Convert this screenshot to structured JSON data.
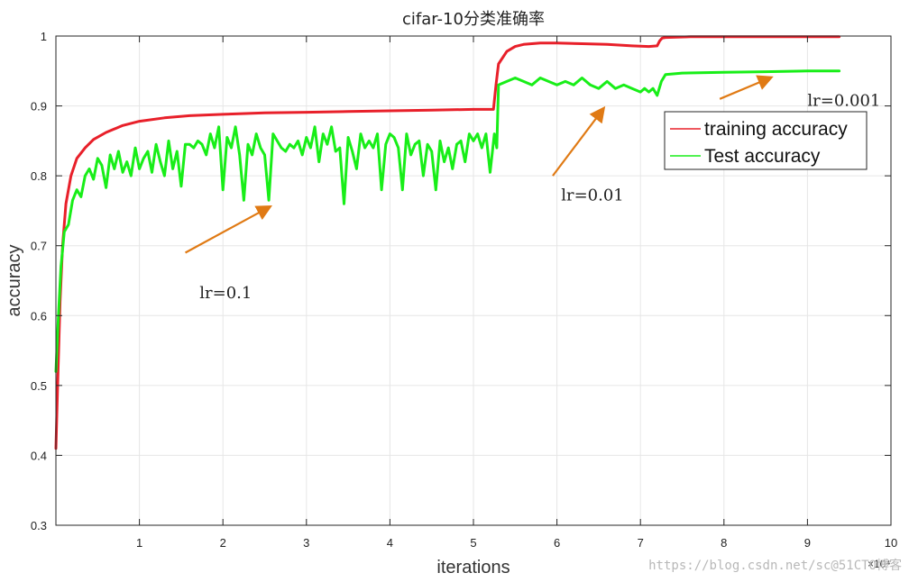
{
  "chart_data": {
    "type": "line",
    "title": "cifar-10分类准确率",
    "xlabel": "iterations",
    "ylabel": "accuracy",
    "x_exponent_label": "×10⁴",
    "xlim": [
      0,
      10
    ],
    "ylim": [
      0.3,
      1.0
    ],
    "xticks": [
      "1",
      "2",
      "3",
      "4",
      "5",
      "6",
      "7",
      "8",
      "9",
      "10"
    ],
    "yticks": [
      "0.3",
      "0.4",
      "0.5",
      "0.6",
      "0.7",
      "0.8",
      "0.9",
      "1"
    ],
    "grid": true,
    "legend_position": "top-right",
    "series": [
      {
        "name": "training accuracy",
        "color": "#e8202a",
        "x": [
          0.0,
          0.02,
          0.05,
          0.08,
          0.12,
          0.18,
          0.25,
          0.35,
          0.45,
          0.6,
          0.8,
          1.0,
          1.3,
          1.6,
          2.0,
          2.5,
          3.0,
          3.5,
          4.0,
          4.5,
          5.0,
          5.24,
          5.27,
          5.3,
          5.4,
          5.5,
          5.6,
          5.8,
          6.0,
          6.3,
          6.6,
          6.9,
          7.1,
          7.2,
          7.23,
          7.26,
          7.3,
          7.6,
          8.0,
          8.5,
          9.0,
          9.38
        ],
        "y": [
          0.41,
          0.5,
          0.62,
          0.7,
          0.76,
          0.8,
          0.825,
          0.84,
          0.852,
          0.862,
          0.872,
          0.878,
          0.883,
          0.886,
          0.888,
          0.89,
          0.891,
          0.892,
          0.893,
          0.894,
          0.895,
          0.895,
          0.93,
          0.96,
          0.978,
          0.985,
          0.988,
          0.99,
          0.99,
          0.989,
          0.988,
          0.986,
          0.985,
          0.986,
          0.993,
          0.997,
          0.998,
          0.999,
          0.999,
          0.999,
          0.999,
          0.999
        ]
      },
      {
        "name": "Test accuracy",
        "color": "#18ee18",
        "x": [
          0.0,
          0.03,
          0.06,
          0.1,
          0.15,
          0.2,
          0.25,
          0.3,
          0.35,
          0.4,
          0.45,
          0.5,
          0.55,
          0.6,
          0.65,
          0.7,
          0.75,
          0.8,
          0.85,
          0.9,
          0.95,
          1.0,
          1.05,
          1.1,
          1.15,
          1.2,
          1.25,
          1.3,
          1.35,
          1.4,
          1.45,
          1.5,
          1.55,
          1.6,
          1.65,
          1.7,
          1.75,
          1.8,
          1.85,
          1.9,
          1.95,
          2.0,
          2.05,
          2.1,
          2.15,
          2.2,
          2.25,
          2.3,
          2.35,
          2.4,
          2.45,
          2.5,
          2.55,
          2.6,
          2.65,
          2.7,
          2.75,
          2.8,
          2.85,
          2.9,
          2.95,
          3.0,
          3.05,
          3.1,
          3.15,
          3.2,
          3.25,
          3.3,
          3.35,
          3.4,
          3.45,
          3.5,
          3.55,
          3.6,
          3.65,
          3.7,
          3.75,
          3.8,
          3.85,
          3.9,
          3.95,
          4.0,
          4.05,
          4.1,
          4.15,
          4.2,
          4.25,
          4.3,
          4.35,
          4.4,
          4.45,
          4.5,
          4.55,
          4.6,
          4.65,
          4.7,
          4.75,
          4.8,
          4.85,
          4.9,
          4.95,
          5.0,
          5.05,
          5.1,
          5.15,
          5.2,
          5.25,
          5.28,
          5.3,
          5.4,
          5.5,
          5.6,
          5.7,
          5.8,
          5.9,
          6.0,
          6.1,
          6.2,
          6.3,
          6.4,
          6.5,
          6.6,
          6.7,
          6.8,
          6.9,
          7.0,
          7.05,
          7.1,
          7.15,
          7.2,
          7.25,
          7.3,
          7.5,
          8.0,
          8.5,
          9.0,
          9.38
        ],
        "y": [
          0.52,
          0.6,
          0.67,
          0.72,
          0.73,
          0.765,
          0.78,
          0.77,
          0.8,
          0.81,
          0.795,
          0.825,
          0.815,
          0.783,
          0.83,
          0.81,
          0.835,
          0.805,
          0.82,
          0.8,
          0.84,
          0.81,
          0.825,
          0.835,
          0.805,
          0.845,
          0.82,
          0.8,
          0.85,
          0.81,
          0.835,
          0.785,
          0.845,
          0.845,
          0.84,
          0.85,
          0.845,
          0.83,
          0.86,
          0.84,
          0.87,
          0.78,
          0.855,
          0.84,
          0.87,
          0.83,
          0.765,
          0.845,
          0.83,
          0.86,
          0.84,
          0.83,
          0.765,
          0.86,
          0.85,
          0.84,
          0.835,
          0.845,
          0.84,
          0.85,
          0.83,
          0.855,
          0.84,
          0.87,
          0.82,
          0.86,
          0.845,
          0.87,
          0.835,
          0.84,
          0.76,
          0.855,
          0.835,
          0.81,
          0.86,
          0.84,
          0.85,
          0.84,
          0.86,
          0.78,
          0.845,
          0.86,
          0.855,
          0.84,
          0.78,
          0.86,
          0.83,
          0.845,
          0.85,
          0.8,
          0.845,
          0.835,
          0.78,
          0.85,
          0.82,
          0.84,
          0.81,
          0.845,
          0.85,
          0.82,
          0.86,
          0.85,
          0.86,
          0.84,
          0.86,
          0.805,
          0.86,
          0.84,
          0.93,
          0.935,
          0.94,
          0.935,
          0.93,
          0.94,
          0.935,
          0.93,
          0.935,
          0.93,
          0.94,
          0.93,
          0.925,
          0.935,
          0.925,
          0.93,
          0.925,
          0.92,
          0.925,
          0.92,
          0.925,
          0.915,
          0.935,
          0.945,
          0.947,
          0.948,
          0.949,
          0.95,
          0.95
        ]
      }
    ],
    "annotations": [
      {
        "text": "lr=0.1",
        "x": 1.72,
        "y": 0.625,
        "arrow_from": [
          1.55,
          0.69
        ],
        "arrow_to": [
          2.55,
          0.755
        ]
      },
      {
        "text": "lr=0.01",
        "x": 6.05,
        "y": 0.765,
        "arrow_from": [
          5.95,
          0.8
        ],
        "arrow_to": [
          6.55,
          0.895
        ]
      },
      {
        "text": "lr=0.001",
        "x": 9.0,
        "y": 0.9,
        "arrow_from": [
          7.95,
          0.91
        ],
        "arrow_to": [
          8.55,
          0.94
        ]
      }
    ],
    "annotation_color": "#e07a14"
  },
  "watermark": "https://blog.csdn.net/sc@51CTO博客"
}
